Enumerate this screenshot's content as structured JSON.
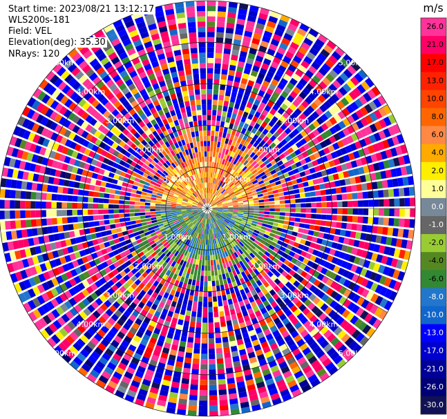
{
  "header": {
    "start_time": "Start time: 2023/08/21 13:12:17",
    "instrument": "WLS200s-181",
    "field": "Field: VEL",
    "elevation": "Elevation(deg): 35.30",
    "nrays": "NRays: 120"
  },
  "colorbar": {
    "unit": "m/s",
    "ticks": [
      "26.0",
      "21.0",
      "17.0",
      "13.0",
      "10.0",
      "8.0",
      "6.0",
      "4.0",
      "2.0",
      "1.0",
      "0.0",
      "-1.0",
      "-2.0",
      "-4.0",
      "-6.0",
      "-8.0",
      "-10.0",
      "-13.0",
      "-17.0",
      "-21.0",
      "-26.0",
      "-30.0"
    ],
    "colors": [
      "#ff3399",
      "#ff0066",
      "#ff0000",
      "#ff2200",
      "#ff4400",
      "#ff6600",
      "#ff8844",
      "#ffaa00",
      "#ffee00",
      "#ffff99",
      "#778899",
      "#666666",
      "#99cc33",
      "#558822",
      "#338833",
      "#2277cc",
      "#1166cc",
      "#0000ff",
      "#0000cc",
      "#000099",
      "#000077",
      "#111155"
    ]
  },
  "chart_data": {
    "type": "heatmap",
    "projection": "polar-ppi",
    "field": "VEL",
    "unit": "m/s",
    "n_rays": 120,
    "range_ring_labels_km": [
      "1.00km",
      "2.00km",
      "3.00km",
      "4.00km",
      "5.00km"
    ],
    "range_rings_km": [
      1,
      2,
      3,
      4,
      5
    ],
    "max_range_km": 5.0,
    "clim": [
      -30,
      26
    ],
    "near_field_pattern": {
      "north_half": "positive (orange/yellow, 2.0 to 13.0 m/s)",
      "south_half": "negative (green/blue, -2.0 to -10.0 m/s)"
    },
    "far_field": "noise (random colors across full scale)"
  }
}
